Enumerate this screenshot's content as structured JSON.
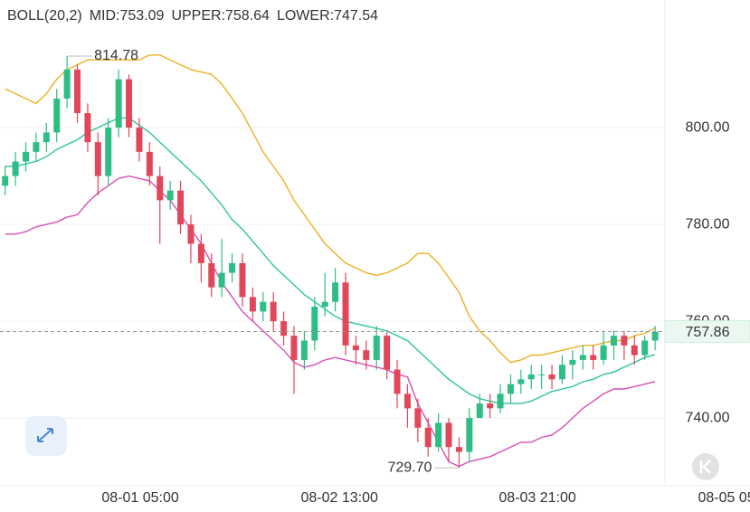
{
  "chart_data": {
    "type": "candlestick",
    "indicator_labels": [
      "BOLL(20,2)",
      "MID:753.09",
      "UPPER:758.64",
      "LOWER:747.54"
    ],
    "up_color": "#2ebd85",
    "down_color": "#e0475b",
    "open": [
      788,
      790,
      793,
      795,
      797,
      799,
      806,
      812,
      803,
      797,
      790,
      800,
      810,
      800,
      795,
      790,
      785,
      787,
      780,
      776,
      772,
      767,
      770,
      772,
      765,
      762,
      764,
      760,
      757,
      752,
      756,
      763,
      764,
      768,
      755,
      754,
      752,
      757,
      750,
      745,
      742,
      738,
      734,
      739,
      734,
      733,
      740,
      743,
      742,
      745,
      747,
      748,
      749,
      749,
      748,
      751,
      752,
      753,
      752,
      755,
      757,
      755,
      753,
      756
    ],
    "high": [
      792,
      795,
      797,
      799,
      801,
      808,
      814.78,
      813,
      805,
      799,
      802,
      812,
      811,
      802,
      797,
      792,
      789,
      789,
      782,
      778,
      774,
      777,
      774,
      774,
      767,
      766,
      766,
      762,
      759,
      758,
      765,
      770,
      771,
      770,
      757,
      756,
      759,
      758,
      752,
      747,
      744,
      740,
      741,
      740,
      736,
      742,
      745,
      745,
      747,
      749,
      750,
      751,
      751,
      751,
      753,
      754,
      755,
      755,
      758,
      758,
      758,
      757,
      757,
      759
    ],
    "low": [
      786,
      788,
      791,
      793,
      795,
      797,
      804,
      801,
      795,
      786,
      788,
      798,
      798,
      793,
      788,
      776,
      783,
      778,
      772,
      768,
      765,
      765,
      768,
      763,
      760,
      760,
      758,
      755,
      745,
      750,
      754,
      761,
      762,
      753,
      751,
      750,
      750,
      748,
      742,
      738,
      735,
      732,
      733,
      731,
      729.7,
      731,
      740,
      740,
      741,
      743,
      745,
      746,
      746,
      746,
      747,
      748,
      750,
      750,
      751,
      752,
      752,
      751,
      752,
      754
    ],
    "close": [
      790,
      793,
      795,
      797,
      799,
      806,
      812,
      803,
      797,
      790,
      800,
      810,
      800,
      795,
      790,
      785,
      787,
      780,
      776,
      772,
      767,
      770,
      772,
      765,
      762,
      764,
      760,
      757,
      752,
      756,
      763,
      764,
      768,
      755,
      754,
      752,
      757,
      750,
      745,
      742,
      738,
      734,
      739,
      734,
      733,
      740,
      743,
      742,
      745,
      747,
      748,
      749,
      749,
      748,
      751,
      752,
      753,
      752,
      755,
      757,
      755,
      753,
      756,
      757.86
    ],
    "series": [
      {
        "color": "#2ec4a0",
        "values": [
          792,
          792,
          792.5,
          793,
          794,
          795.5,
          796.5,
          797.5,
          799,
          800,
          801,
          802,
          802,
          800.5,
          799,
          797,
          795,
          793,
          791,
          789,
          786.5,
          784,
          781,
          779,
          776.5,
          774,
          771.5,
          769.5,
          767.5,
          765.5,
          764,
          762.5,
          761,
          760,
          759.5,
          759,
          758.5,
          758,
          757,
          756,
          754,
          752,
          750,
          748,
          746.5,
          745,
          744,
          743.5,
          743,
          743,
          743,
          743.5,
          744.5,
          745.5,
          746,
          746.5,
          747.5,
          748,
          749,
          749.5,
          750.5,
          751.5,
          752.5,
          753.09
        ]
      },
      {
        "color": "#ebb023",
        "values": [
          808,
          807,
          806,
          805,
          807,
          810,
          812,
          813,
          814,
          814,
          814,
          814,
          814,
          814,
          815,
          815,
          814,
          813,
          812,
          811.5,
          811,
          809,
          806,
          803,
          799,
          795,
          792,
          789,
          785,
          782,
          779,
          776,
          774,
          772,
          771,
          770,
          769.5,
          770,
          771,
          772,
          774,
          774,
          772,
          769,
          766,
          761,
          758,
          756,
          753.5,
          751.5,
          752,
          753,
          753,
          753.5,
          754,
          754.5,
          755,
          755,
          755.5,
          756,
          756,
          757,
          757.5,
          758.64
        ]
      },
      {
        "color": "#d94fb4",
        "values": [
          778,
          778,
          778.5,
          779.5,
          780,
          780.5,
          781.5,
          782,
          784.5,
          786.5,
          788,
          789.5,
          790,
          789.5,
          789,
          787,
          785,
          782,
          779,
          776,
          772,
          768,
          765,
          762,
          760,
          758,
          756,
          754,
          751.5,
          750.5,
          751,
          752,
          752.5,
          752,
          751.5,
          751,
          750.5,
          750,
          749,
          748.5,
          743,
          739,
          735,
          731,
          730,
          731,
          731.5,
          732,
          733,
          734,
          735,
          735,
          736,
          736.5,
          738,
          740,
          742,
          743.5,
          745,
          746,
          746,
          746.5,
          747,
          747.54
        ]
      }
    ],
    "annotations": [
      {
        "value": 814.78,
        "label": "814.78"
      },
      {
        "value": 729.7,
        "label": "729.70"
      }
    ],
    "ylim": [
      726,
      826
    ],
    "yticks": [
      {
        "value": 740,
        "label": "740.00"
      },
      {
        "value": 760,
        "label": "760.00"
      },
      {
        "value": 780,
        "label": "780.00"
      },
      {
        "value": 800,
        "label": "800.00"
      }
    ],
    "xlim": [
      -0.5,
      72.2
    ],
    "xticks": [
      {
        "value": 13.1,
        "label": "08-01 05:00"
      },
      {
        "value": 32.4,
        "label": "08-02 13:00"
      },
      {
        "value": 51.6,
        "label": "08-03 21:00"
      },
      {
        "value": 70.9,
        "label": "08-05 05:00"
      }
    ],
    "grid": true
  }
}
